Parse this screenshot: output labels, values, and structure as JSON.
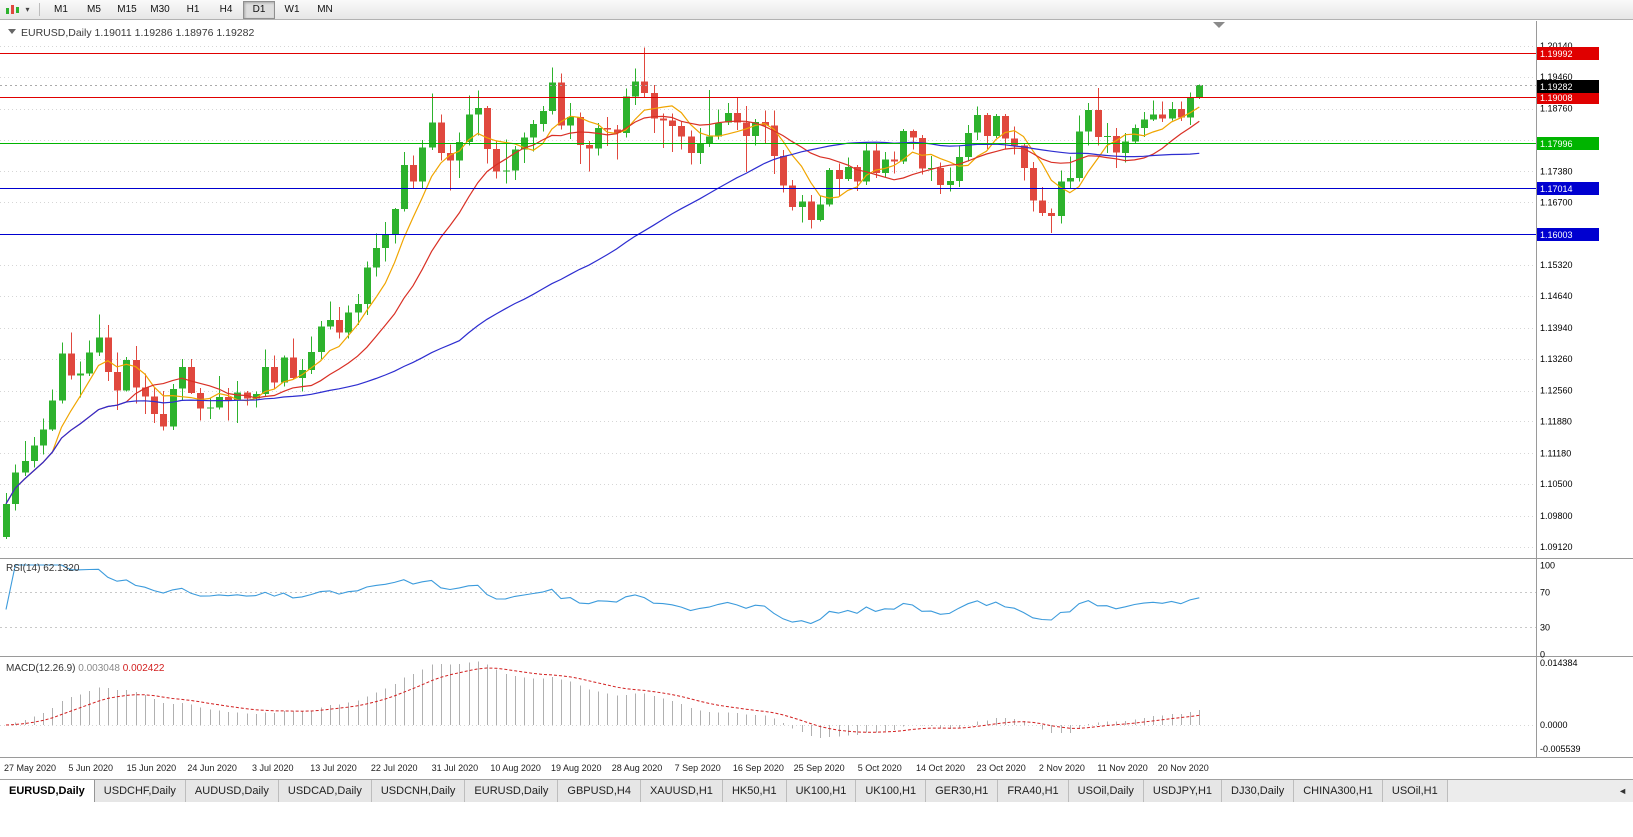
{
  "toolbar": {
    "timeframes": [
      "M1",
      "M5",
      "M15",
      "M30",
      "H1",
      "H4",
      "D1",
      "W1",
      "MN"
    ],
    "active_timeframe": "D1"
  },
  "icons": {
    "caret": "▾",
    "tab_scroll_left": "◄"
  },
  "colors": {
    "background": "#FFFFFF",
    "grid": "#D6D6D6",
    "bull": "#2DB22D",
    "bear": "#E0483E",
    "panel_border": "#9A9A9A",
    "axis_text": "#000000",
    "header_text": "#3A3A3A",
    "date_text": "#222222"
  },
  "chart_data": {
    "type": "candlestick",
    "title": "EURUSD,Daily",
    "ohlc_display": [
      "1.19011",
      "1.19286",
      "1.18976",
      "1.19282"
    ],
    "y_range": [
      1.089,
      1.206
    ],
    "grid": "dotted-horizontal",
    "y_axis_labels": [
      "1.20140",
      "1.19460",
      "1.18760",
      "1.18060",
      "1.17380",
      "1.16700",
      "1.16000",
      "1.15320",
      "1.14640",
      "1.13940",
      "1.13260",
      "1.12560",
      "1.11880",
      "1.11180",
      "1.10500",
      "1.09800",
      "1.09120"
    ],
    "x_labels": [
      "27 May 2020",
      "5 Jun 2020",
      "15 Jun 2020",
      "24 Jun 2020",
      "3 Jul 2020",
      "13 Jul 2020",
      "22 Jul 2020",
      "31 Jul 2020",
      "10 Aug 2020",
      "19 Aug 2020",
      "28 Aug 2020",
      "7 Sep 2020",
      "16 Sep 2020",
      "25 Sep 2020",
      "5 Oct 2020",
      "14 Oct 2020",
      "23 Oct 2020",
      "2 Nov 2020",
      "11 Nov 2020",
      "20 Nov 2020"
    ],
    "candles": [
      [
        1.0934,
        1.1031,
        1.093,
        1.1007
      ],
      [
        1.1007,
        1.1093,
        1.0992,
        1.1076
      ],
      [
        1.1076,
        1.1145,
        1.1068,
        1.1101
      ],
      [
        1.1101,
        1.1154,
        1.1087,
        1.1135
      ],
      [
        1.1135,
        1.1195,
        1.1115,
        1.117
      ],
      [
        1.117,
        1.1258,
        1.1167,
        1.1234
      ],
      [
        1.1234,
        1.1362,
        1.1228,
        1.1337
      ],
      [
        1.1337,
        1.1384,
        1.128,
        1.1289
      ],
      [
        1.1289,
        1.132,
        1.1241,
        1.1294
      ],
      [
        1.1294,
        1.1366,
        1.1288,
        1.134
      ],
      [
        1.134,
        1.1423,
        1.1332,
        1.1373
      ],
      [
        1.1373,
        1.14,
        1.1277,
        1.1297
      ],
      [
        1.1297,
        1.134,
        1.1213,
        1.1256
      ],
      [
        1.1256,
        1.133,
        1.1254,
        1.1323
      ],
      [
        1.1323,
        1.1354,
        1.1228,
        1.1263
      ],
      [
        1.1263,
        1.1294,
        1.1204,
        1.1243
      ],
      [
        1.1243,
        1.1262,
        1.1185,
        1.1204
      ],
      [
        1.1204,
        1.1255,
        1.1168,
        1.1177
      ],
      [
        1.1177,
        1.1271,
        1.1169,
        1.126
      ],
      [
        1.126,
        1.1326,
        1.1233,
        1.1308
      ],
      [
        1.1308,
        1.1325,
        1.1248,
        1.1251
      ],
      [
        1.1251,
        1.1262,
        1.119,
        1.1217
      ],
      [
        1.1217,
        1.124,
        1.1194,
        1.1219
      ],
      [
        1.1219,
        1.1288,
        1.1214,
        1.1242
      ],
      [
        1.1242,
        1.1262,
        1.119,
        1.1234
      ],
      [
        1.1234,
        1.1277,
        1.1185,
        1.1252
      ],
      [
        1.1252,
        1.1255,
        1.1223,
        1.1239
      ],
      [
        1.1239,
        1.1254,
        1.1219,
        1.1248
      ],
      [
        1.1248,
        1.1346,
        1.1242,
        1.1308
      ],
      [
        1.1308,
        1.1333,
        1.1259,
        1.1274
      ],
      [
        1.1274,
        1.1333,
        1.1265,
        1.1329
      ],
      [
        1.1329,
        1.1371,
        1.128,
        1.1284
      ],
      [
        1.1284,
        1.1325,
        1.1254,
        1.1301
      ],
      [
        1.1301,
        1.1375,
        1.1292,
        1.1341
      ],
      [
        1.1341,
        1.1409,
        1.1325,
        1.1397
      ],
      [
        1.1397,
        1.1452,
        1.139,
        1.1411
      ],
      [
        1.1411,
        1.144,
        1.1371,
        1.1384
      ],
      [
        1.1384,
        1.1443,
        1.137,
        1.1428
      ],
      [
        1.1428,
        1.1468,
        1.14,
        1.1446
      ],
      [
        1.1446,
        1.154,
        1.1422,
        1.1527
      ],
      [
        1.1527,
        1.1601,
        1.1507,
        1.157
      ],
      [
        1.157,
        1.1627,
        1.154,
        1.1598
      ],
      [
        1.1598,
        1.1658,
        1.158,
        1.1655
      ],
      [
        1.1655,
        1.1781,
        1.165,
        1.1752
      ],
      [
        1.1752,
        1.1773,
        1.17,
        1.1716
      ],
      [
        1.1716,
        1.1807,
        1.1702,
        1.1791
      ],
      [
        1.1791,
        1.1909,
        1.1785,
        1.1846
      ],
      [
        1.1846,
        1.1863,
        1.1762,
        1.1778
      ],
      [
        1.1778,
        1.1797,
        1.1696,
        1.1762
      ],
      [
        1.1762,
        1.1824,
        1.1723,
        1.1803
      ],
      [
        1.1803,
        1.1905,
        1.1795,
        1.1863
      ],
      [
        1.1863,
        1.1916,
        1.1817,
        1.1878
      ],
      [
        1.1878,
        1.1882,
        1.1755,
        1.1787
      ],
      [
        1.1787,
        1.1805,
        1.1722,
        1.1738
      ],
      [
        1.1738,
        1.1808,
        1.1711,
        1.174
      ],
      [
        1.174,
        1.1794,
        1.1719,
        1.1786
      ],
      [
        1.1786,
        1.1824,
        1.1757,
        1.1813
      ],
      [
        1.1813,
        1.1851,
        1.1782,
        1.1842
      ],
      [
        1.1842,
        1.1882,
        1.1826,
        1.1871
      ],
      [
        1.1871,
        1.1966,
        1.1863,
        1.1933
      ],
      [
        1.1933,
        1.1953,
        1.183,
        1.1839
      ],
      [
        1.1839,
        1.1889,
        1.1809,
        1.1858
      ],
      [
        1.1858,
        1.1868,
        1.1754,
        1.1796
      ],
      [
        1.1796,
        1.1805,
        1.1738,
        1.1788
      ],
      [
        1.1788,
        1.1845,
        1.1773,
        1.1834
      ],
      [
        1.1834,
        1.1858,
        1.1794,
        1.183
      ],
      [
        1.183,
        1.184,
        1.1764,
        1.1822
      ],
      [
        1.1822,
        1.192,
        1.1813,
        1.1903
      ],
      [
        1.1903,
        1.1964,
        1.1884,
        1.1936
      ],
      [
        1.1936,
        1.2011,
        1.19,
        1.1911
      ],
      [
        1.1911,
        1.1928,
        1.1822,
        1.1854
      ],
      [
        1.1854,
        1.1865,
        1.1789,
        1.185
      ],
      [
        1.185,
        1.1865,
        1.1781,
        1.1838
      ],
      [
        1.1838,
        1.1848,
        1.1786,
        1.1815
      ],
      [
        1.1815,
        1.1828,
        1.1753,
        1.1779
      ],
      [
        1.1779,
        1.1834,
        1.1754,
        1.1801
      ],
      [
        1.1801,
        1.1917,
        1.1792,
        1.1815
      ],
      [
        1.1815,
        1.1874,
        1.1808,
        1.1845
      ],
      [
        1.1845,
        1.1888,
        1.184,
        1.1866
      ],
      [
        1.1866,
        1.1901,
        1.1829,
        1.1846
      ],
      [
        1.1846,
        1.1882,
        1.1737,
        1.1816
      ],
      [
        1.1816,
        1.1853,
        1.1795,
        1.1847
      ],
      [
        1.1847,
        1.1872,
        1.18,
        1.1839
      ],
      [
        1.1839,
        1.1872,
        1.1732,
        1.1772
      ],
      [
        1.1772,
        1.1785,
        1.1692,
        1.1707
      ],
      [
        1.1707,
        1.1719,
        1.1652,
        1.166
      ],
      [
        1.166,
        1.1686,
        1.1626,
        1.1672
      ],
      [
        1.1672,
        1.1686,
        1.1612,
        1.1631
      ],
      [
        1.1631,
        1.1684,
        1.1628,
        1.1665
      ],
      [
        1.1665,
        1.1745,
        1.1661,
        1.1741
      ],
      [
        1.1741,
        1.1755,
        1.1684,
        1.1721
      ],
      [
        1.1721,
        1.1769,
        1.1717,
        1.1748
      ],
      [
        1.1748,
        1.1752,
        1.1695,
        1.1716
      ],
      [
        1.1716,
        1.1798,
        1.1708,
        1.1784
      ],
      [
        1.1784,
        1.1799,
        1.1724,
        1.1734
      ],
      [
        1.1734,
        1.1781,
        1.1725,
        1.1764
      ],
      [
        1.1764,
        1.1782,
        1.1733,
        1.176
      ],
      [
        1.176,
        1.1831,
        1.1754,
        1.1827
      ],
      [
        1.1827,
        1.183,
        1.1786,
        1.1812
      ],
      [
        1.1812,
        1.1818,
        1.1731,
        1.1744
      ],
      [
        1.1744,
        1.1772,
        1.1717,
        1.1746
      ],
      [
        1.1746,
        1.1758,
        1.1688,
        1.1708
      ],
      [
        1.1708,
        1.1747,
        1.1694,
        1.1717
      ],
      [
        1.1717,
        1.1794,
        1.1704,
        1.177
      ],
      [
        1.177,
        1.184,
        1.176,
        1.1823
      ],
      [
        1.1823,
        1.1881,
        1.1807,
        1.1862
      ],
      [
        1.1862,
        1.1866,
        1.1787,
        1.1816
      ],
      [
        1.1816,
        1.1864,
        1.1811,
        1.186
      ],
      [
        1.186,
        1.1864,
        1.1786,
        1.181
      ],
      [
        1.181,
        1.1837,
        1.1775,
        1.1795
      ],
      [
        1.1795,
        1.18,
        1.1718,
        1.1746
      ],
      [
        1.1746,
        1.1759,
        1.165,
        1.1674
      ],
      [
        1.1674,
        1.1704,
        1.164,
        1.1647
      ],
      [
        1.1647,
        1.1656,
        1.1603,
        1.164
      ],
      [
        1.164,
        1.174,
        1.1623,
        1.1716
      ],
      [
        1.1716,
        1.1771,
        1.17,
        1.1724
      ],
      [
        1.1724,
        1.1861,
        1.1716,
        1.1826
      ],
      [
        1.1826,
        1.1888,
        1.1795,
        1.1873
      ],
      [
        1.1873,
        1.1921,
        1.1795,
        1.1814
      ],
      [
        1.1814,
        1.1844,
        1.1779,
        1.1816
      ],
      [
        1.1816,
        1.1834,
        1.1745,
        1.1779
      ],
      [
        1.1779,
        1.1823,
        1.1758,
        1.1804
      ],
      [
        1.1804,
        1.1841,
        1.1799,
        1.1834
      ],
      [
        1.1834,
        1.1869,
        1.1814,
        1.1852
      ],
      [
        1.1852,
        1.1894,
        1.1849,
        1.1863
      ],
      [
        1.1863,
        1.1892,
        1.1847,
        1.1854
      ],
      [
        1.1854,
        1.1891,
        1.185,
        1.1875
      ],
      [
        1.1875,
        1.1892,
        1.1849,
        1.1857
      ],
      [
        1.1857,
        1.1912,
        1.184,
        1.1901
      ],
      [
        1.19011,
        1.19286,
        1.18976,
        1.19282
      ]
    ],
    "price_lines": [
      {
        "value": 1.19992,
        "label": "1.19992",
        "color": "#E00000"
      },
      {
        "value": 1.19008,
        "label": "1.19008",
        "color": "#E00000"
      },
      {
        "value": 1.17996,
        "label": "1.17996",
        "color": "#00B400"
      },
      {
        "value": 1.17014,
        "label": "1.17014",
        "color": "#0000D0"
      },
      {
        "value": 1.16003,
        "label": "1.16003",
        "color": "#0000D0"
      }
    ],
    "current_price": {
      "value": 1.19282,
      "label": "1.19282",
      "color": "#000000"
    },
    "moving_averages": [
      {
        "type": "sma",
        "period": 6,
        "color": "#F0A500"
      },
      {
        "type": "sma",
        "period": 14,
        "color": "#D93025"
      },
      {
        "type": "sma",
        "period": 50,
        "color": "#2D2DD0"
      }
    ],
    "rsi": {
      "title": "RSI(14)",
      "value_display": "62.1320",
      "period": 14,
      "levels": [
        100,
        70,
        30,
        0
      ],
      "range": [
        0,
        100
      ],
      "color": "#3C9BDC"
    },
    "macd": {
      "title": "MACD(12.26.9)",
      "value_main": "0.003048",
      "value_signal": "0.002422",
      "fast": 12,
      "slow": 26,
      "signal": 9,
      "axis_labels": [
        "0.014384",
        "0.0000",
        "-0.005539"
      ],
      "histogram_color": "#B0B0B0",
      "signal_color": "#D22020"
    }
  },
  "tabs": {
    "active_index": 0,
    "items": [
      "EURUSD,Daily",
      "USDCHF,Daily",
      "AUDUSD,Daily",
      "USDCAD,Daily",
      "USDCNH,Daily",
      "EURUSD,Daily",
      "GBPUSD,H4",
      "XAUUSD,H1",
      "HK50,H1",
      "UK100,H1",
      "UK100,H1",
      "GER30,H1",
      "FRA40,H1",
      "USOil,Daily",
      "USDJPY,H1",
      "DJ30,Daily",
      "CHINA300,H1",
      "USOil,H1"
    ]
  }
}
